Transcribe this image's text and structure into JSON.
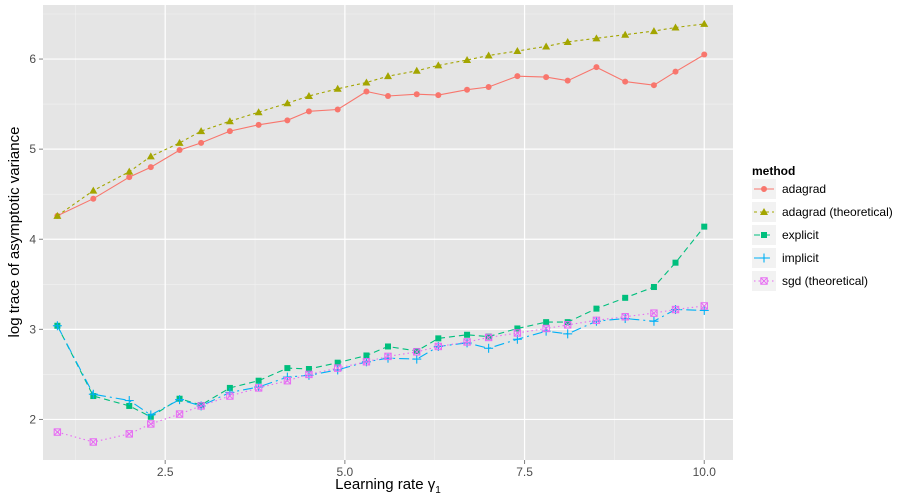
{
  "chart_data": {
    "type": "line",
    "title": "",
    "xlabel": "Learning rate γ",
    "xlabel_subscript": "1",
    "ylabel": "log trace of asymptotic variance",
    "xlim": [
      0.8,
      10.4
    ],
    "ylim": [
      1.55,
      6.6
    ],
    "x_ticks": [
      2.5,
      5.0,
      7.5,
      10.0
    ],
    "x_tick_labels": [
      "2.5",
      "5.0",
      "7.5",
      "10.0"
    ],
    "y_ticks": [
      2,
      3,
      4,
      5,
      6
    ],
    "y_tick_labels": [
      "2",
      "3",
      "4",
      "5",
      "6"
    ],
    "grid": true,
    "legend_title": "method",
    "legend_position": "right",
    "x": [
      1.0,
      1.5,
      2.0,
      2.3,
      2.7,
      3.0,
      3.4,
      3.8,
      4.2,
      4.5,
      4.9,
      5.3,
      5.6,
      6.0,
      6.3,
      6.7,
      7.0,
      7.4,
      7.8,
      8.1,
      8.5,
      8.9,
      9.3,
      9.6,
      10.0
    ],
    "series": [
      {
        "name": "adagrad",
        "color": "#F8766D",
        "marker": "circle",
        "dash": "",
        "values": [
          4.26,
          4.45,
          4.69,
          4.8,
          4.99,
          5.07,
          5.2,
          5.27,
          5.32,
          5.42,
          5.44,
          5.64,
          5.59,
          5.61,
          5.6,
          5.66,
          5.69,
          5.81,
          5.8,
          5.76,
          5.91,
          5.75,
          5.71,
          5.86,
          6.05
        ]
      },
      {
        "name": "adagrad (theoretical)",
        "color": "#A3A500",
        "marker": "triangle",
        "dash": "3,3",
        "values": [
          4.26,
          4.54,
          4.75,
          4.92,
          5.07,
          5.2,
          5.31,
          5.41,
          5.51,
          5.59,
          5.67,
          5.74,
          5.81,
          5.87,
          5.93,
          5.99,
          6.04,
          6.09,
          6.14,
          6.19,
          6.23,
          6.27,
          6.31,
          6.35,
          6.39
        ]
      },
      {
        "name": "explicit",
        "color": "#00BF7D",
        "marker": "square",
        "dash": "6,4",
        "values": [
          3.04,
          2.26,
          2.15,
          2.03,
          2.23,
          2.16,
          2.35,
          2.43,
          2.57,
          2.56,
          2.63,
          2.71,
          2.81,
          2.76,
          2.9,
          2.94,
          2.92,
          3.01,
          3.08,
          3.08,
          3.23,
          3.35,
          3.47,
          3.74,
          4.14
        ]
      },
      {
        "name": "implicit",
        "color": "#00B0F6",
        "marker": "plus",
        "dash": "10,4,2,4",
        "values": [
          3.04,
          2.28,
          2.21,
          2.05,
          2.22,
          2.15,
          2.3,
          2.36,
          2.47,
          2.49,
          2.55,
          2.64,
          2.68,
          2.67,
          2.81,
          2.85,
          2.79,
          2.89,
          2.98,
          2.95,
          3.09,
          3.12,
          3.09,
          3.22,
          3.21
        ]
      },
      {
        "name": "sgd (theoretical)",
        "color": "#E76BF3",
        "marker": "boxx",
        "dash": "1.5,3",
        "values": [
          1.86,
          1.75,
          1.84,
          1.95,
          2.06,
          2.15,
          2.26,
          2.35,
          2.43,
          2.5,
          2.57,
          2.64,
          2.7,
          2.75,
          2.81,
          2.86,
          2.91,
          2.96,
          3.01,
          3.05,
          3.1,
          3.14,
          3.18,
          3.22,
          3.26
        ]
      }
    ]
  }
}
